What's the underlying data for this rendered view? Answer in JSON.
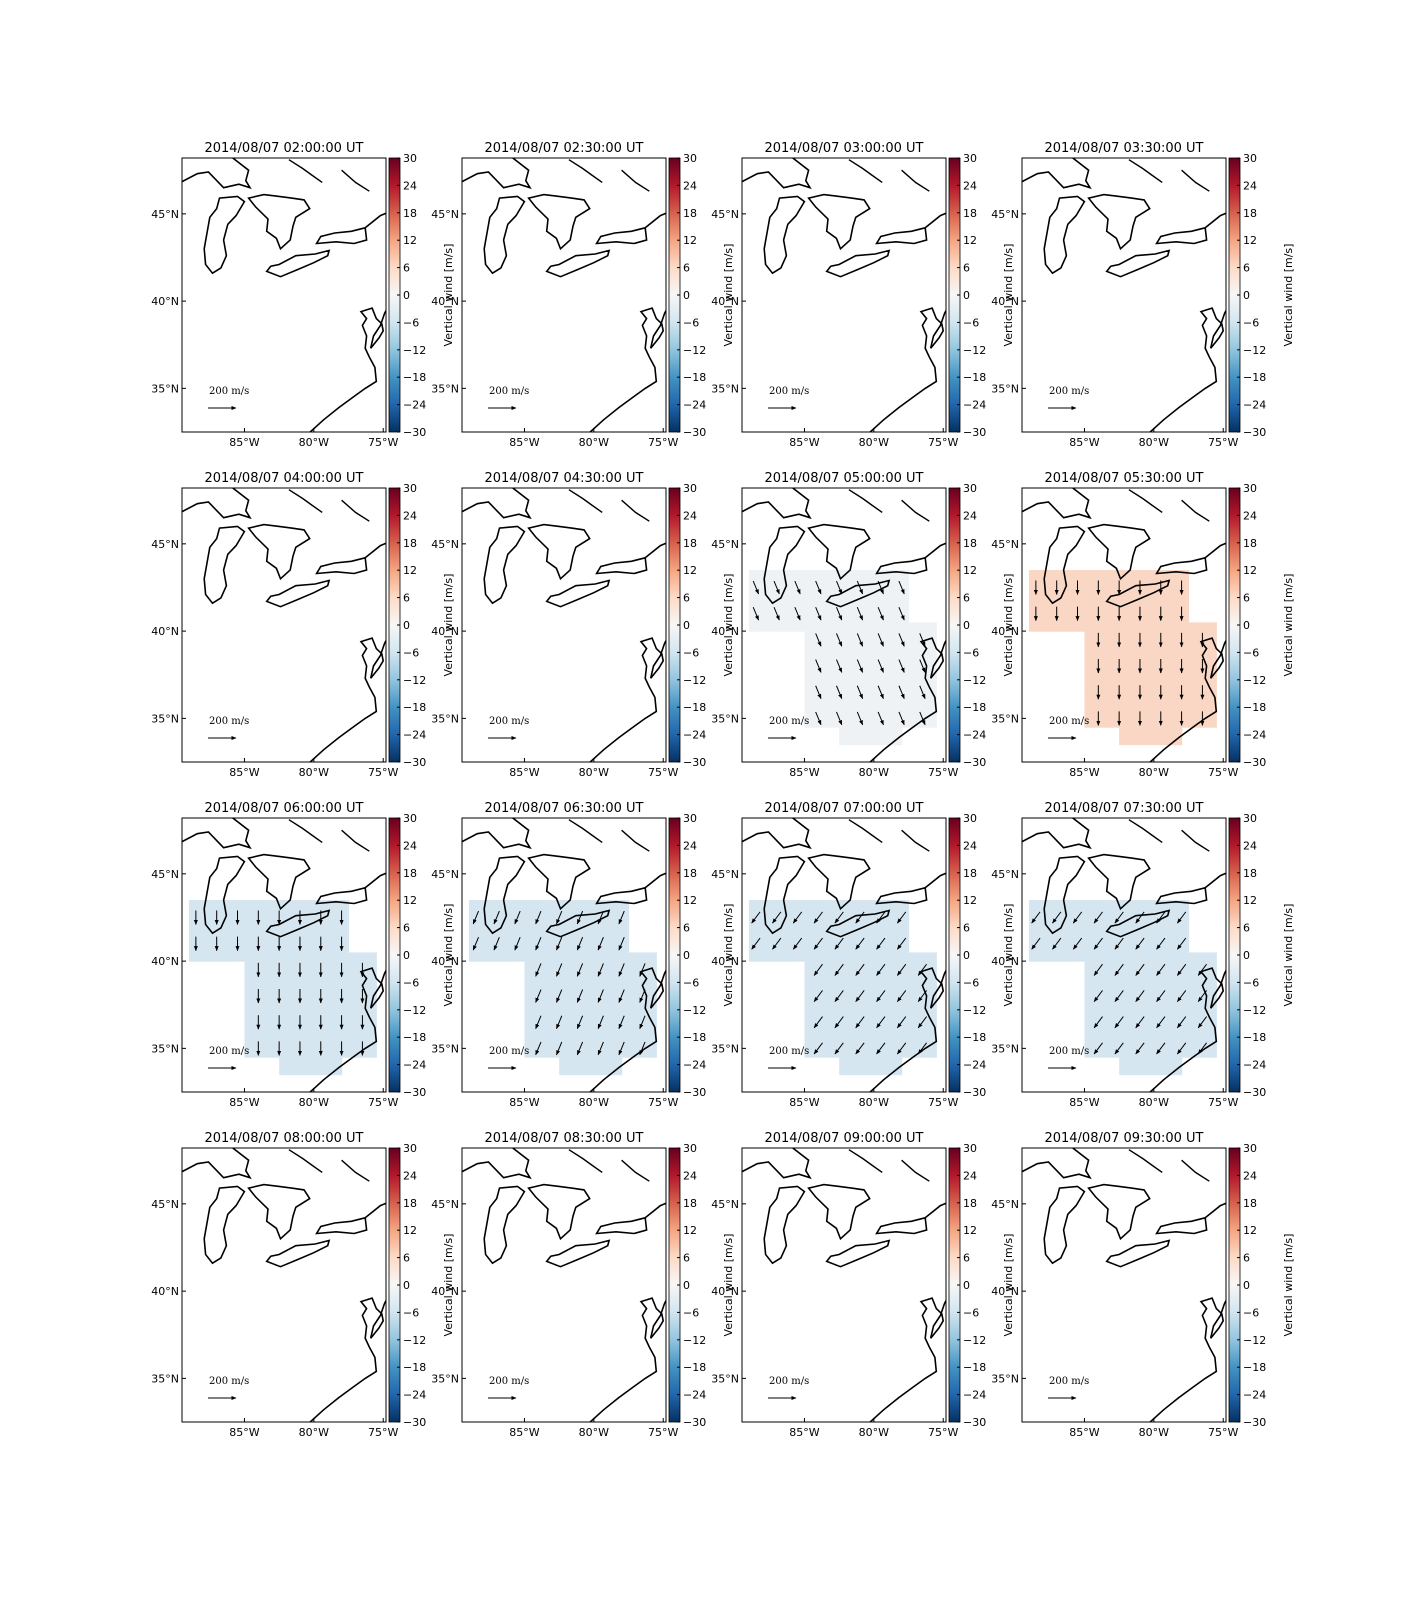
{
  "chart_data": {
    "type": "heatmap",
    "figure": "4x4 grid of map panels showing vertical wind (color) and horizontal wind vectors over the US Great Lakes / Mid-Atlantic region",
    "panel_titles": [
      "2014/08/07 02:00:00 UT",
      "2014/08/07 02:30:00 UT",
      "2014/08/07 03:00:00 UT",
      "2014/08/07 03:30:00 UT",
      "2014/08/07 04:00:00 UT",
      "2014/08/07 04:30:00 UT",
      "2014/08/07 05:00:00 UT",
      "2014/08/07 05:30:00 UT",
      "2014/08/07 06:00:00 UT",
      "2014/08/07 06:30:00 UT",
      "2014/08/07 07:00:00 UT",
      "2014/08/07 07:30:00 UT",
      "2014/08/07 08:00:00 UT",
      "2014/08/07 08:30:00 UT",
      "2014/08/07 09:00:00 UT",
      "2014/08/07 09:30:00 UT"
    ],
    "x_ticks": [
      "85°W",
      "80°W",
      "75°W"
    ],
    "x_tick_values": [
      -85,
      -80,
      -75
    ],
    "y_ticks": [
      "45°N",
      "40°N",
      "35°N"
    ],
    "y_tick_values": [
      45,
      40,
      35
    ],
    "xlim": [
      -89.5,
      -74.8
    ],
    "ylim": [
      32.5,
      48.2
    ],
    "colorbar": {
      "label": "Vertical wind [m/s]",
      "ticks": [
        "30",
        "24",
        "18",
        "12",
        "6",
        "0",
        "−6",
        "−12",
        "−18",
        "−24",
        "−30"
      ],
      "range": [
        -30,
        30
      ],
      "colormap": "RdBu_r"
    },
    "vector_key": {
      "value": 200,
      "units": "m/s",
      "label": "200 m/s"
    },
    "panels": [
      {
        "time": "02:00",
        "vertical_wind": null,
        "has_data": false
      },
      {
        "time": "02:30",
        "vertical_wind": null,
        "has_data": false
      },
      {
        "time": "03:00",
        "vertical_wind": null,
        "has_data": false
      },
      {
        "time": "03:30",
        "vertical_wind": null,
        "has_data": false
      },
      {
        "time": "04:00",
        "vertical_wind": null,
        "has_data": false
      },
      {
        "time": "04:30",
        "vertical_wind": null,
        "has_data": false
      },
      {
        "time": "05:00",
        "vertical_wind": -1,
        "has_data": true,
        "vector_dir": "SSE"
      },
      {
        "time": "05:30",
        "vertical_wind": 4,
        "has_data": true,
        "vector_dir": "S"
      },
      {
        "time": "06:00",
        "vertical_wind": -4,
        "has_data": true,
        "vector_dir": "S"
      },
      {
        "time": "06:30",
        "vertical_wind": -4,
        "has_data": true,
        "vector_dir": "SSW"
      },
      {
        "time": "07:00",
        "vertical_wind": -4,
        "has_data": true,
        "vector_dir": "SW"
      },
      {
        "time": "07:30",
        "vertical_wind": -4,
        "has_data": true,
        "vector_dir": "SW"
      },
      {
        "time": "08:00",
        "vertical_wind": null,
        "has_data": false
      },
      {
        "time": "08:30",
        "vertical_wind": null,
        "has_data": false
      },
      {
        "time": "09:00",
        "vertical_wind": null,
        "has_data": false
      },
      {
        "time": "09:30",
        "vertical_wind": null,
        "has_data": false
      }
    ]
  },
  "colors": {
    "wind_neutral": "#eef2f4",
    "wind_positive": "#f9d7c4",
    "wind_negative": "#d6e6f0",
    "coast": "#000000",
    "colormap_stops": [
      "#67001f",
      "#b2182b",
      "#d6604d",
      "#f4a582",
      "#fddbc7",
      "#f7f7f7",
      "#d1e5f0",
      "#92c5de",
      "#4393c3",
      "#2166ac",
      "#053061"
    ]
  }
}
